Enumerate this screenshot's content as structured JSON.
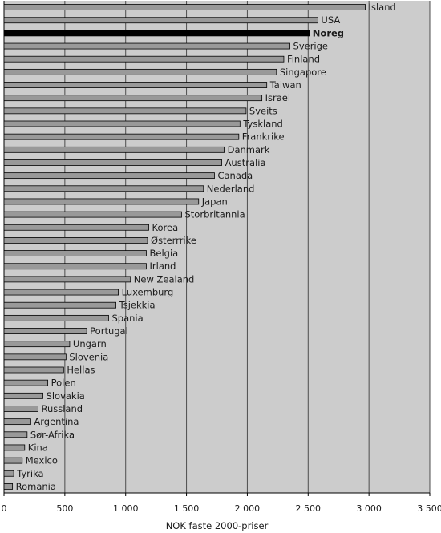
{
  "chart_data": {
    "type": "bar",
    "orientation": "horizontal",
    "categories": [
      "Island",
      "USA",
      "Noreg",
      "Sverige",
      "Finland",
      "Singapore",
      "Taiwan",
      "Israel",
      "Sveits",
      "Tyskland",
      "Frankrike",
      "Danmark",
      "Australia",
      "Canada",
      "Nederland",
      "Japan",
      "Storbritannia",
      "Korea",
      "Østerrrike",
      "Belgia",
      "Irland",
      "New Zealand",
      "Luxemburg",
      "Tsjekkia",
      "Spania",
      "Portugal",
      "Ungarn",
      "Slovenia",
      "Hellas",
      "Polen",
      "Slovakia",
      "Russland",
      "Argentina",
      "Sør-Afrika",
      "Kina",
      "Mexico",
      "Tyrika",
      "Romania"
    ],
    "values": [
      2970,
      2580,
      2510,
      2350,
      2300,
      2240,
      2160,
      2120,
      1990,
      1940,
      1930,
      1810,
      1790,
      1730,
      1640,
      1600,
      1460,
      1190,
      1180,
      1170,
      1170,
      1040,
      940,
      920,
      860,
      680,
      540,
      510,
      490,
      360,
      320,
      280,
      220,
      190,
      170,
      150,
      80,
      70
    ],
    "highlight": "Noreg",
    "xlabel": "NOK faste 2000-priser",
    "ylabel": "",
    "title": "",
    "xlim": [
      0,
      3500
    ],
    "xticks": [
      0,
      500,
      1000,
      1500,
      2000,
      2500,
      3000,
      3500
    ],
    "xtick_labels": [
      "0",
      "500",
      "1 000",
      "1 500",
      "2 000",
      "2 500",
      "3 000",
      "3 500"
    ],
    "grid": true,
    "legend": "none",
    "colors": {
      "plot_background": "#cccccc",
      "bar": "#999999",
      "highlight_bar": "#000000",
      "bar_outline": "#000000",
      "gridline": "#4d4d4d"
    }
  }
}
